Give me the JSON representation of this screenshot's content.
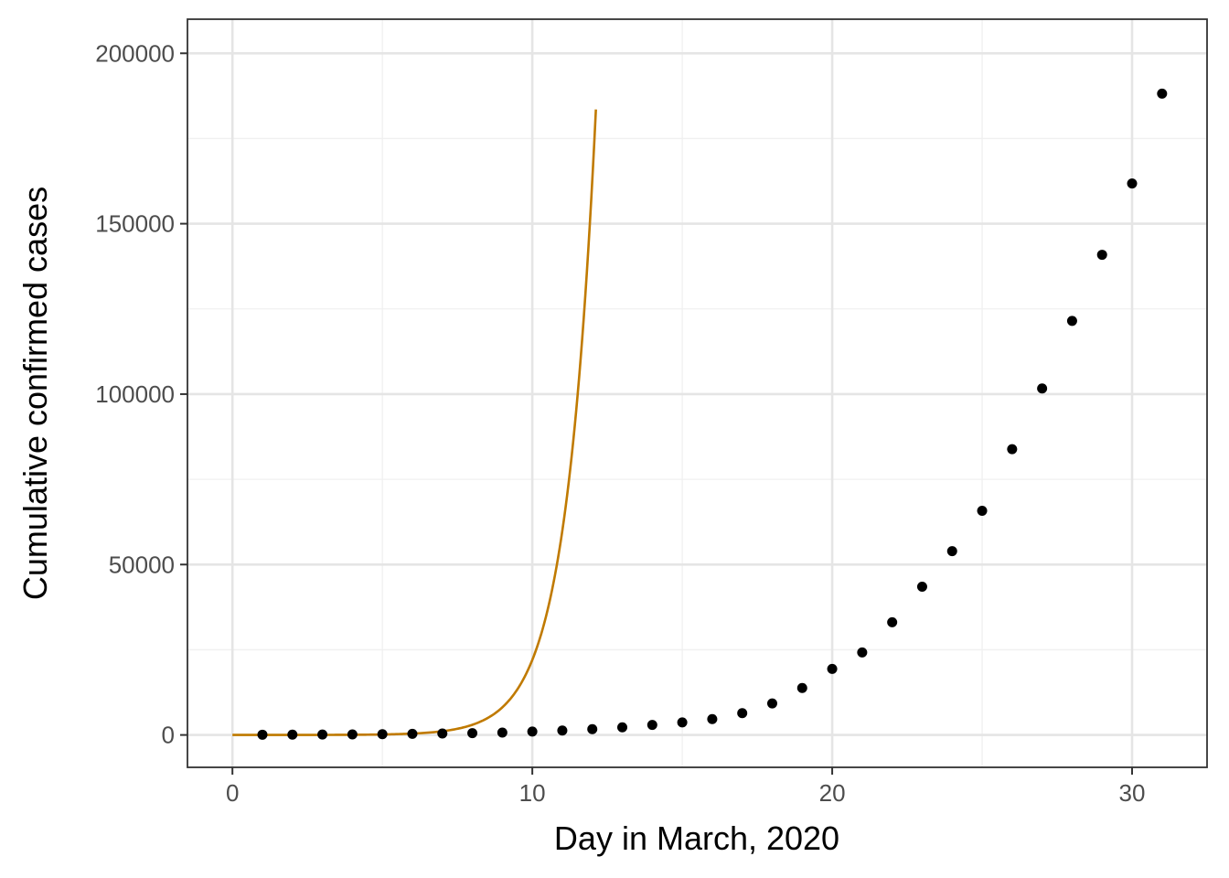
{
  "chart_data": {
    "type": "scatter",
    "title": "",
    "xlabel": "Day in March, 2020",
    "ylabel": "Cumulative confirmed cases",
    "xlim": [
      -1.5,
      32.5
    ],
    "ylim": [
      -9500,
      210000
    ],
    "x_ticks": [
      0,
      10,
      20,
      30
    ],
    "x_tick_labels": [
      "0",
      "10",
      "20",
      "30"
    ],
    "y_ticks": [
      0,
      50000,
      100000,
      150000,
      200000
    ],
    "y_tick_labels": [
      "0",
      "50000",
      "100000",
      "150000",
      "200000"
    ],
    "grid": true,
    "legend": "none",
    "series": [
      {
        "kind": "points",
        "color": "#000000",
        "x": [
          1,
          2,
          3,
          4,
          5,
          6,
          7,
          8,
          9,
          10,
          11,
          12,
          13,
          14,
          15,
          16,
          17,
          18,
          19,
          20,
          21,
          22,
          23,
          24,
          25,
          26,
          27,
          28,
          29,
          30,
          31
        ],
        "y": [
          75,
          100,
          124,
          158,
          221,
          319,
          435,
          541,
          704,
          994,
          1301,
          1697,
          2247,
          2943,
          3680,
          4663,
          6411,
          9259,
          13789,
          19383,
          24207,
          33072,
          43505,
          53938,
          65778,
          83836,
          101657,
          121478,
          140886,
          161807,
          188172
        ]
      },
      {
        "kind": "curve",
        "color": "#C07A00",
        "curve_formula": "y = 1 * exp(1.0 * x)",
        "x_range": [
          0,
          12.12
        ]
      }
    ]
  }
}
